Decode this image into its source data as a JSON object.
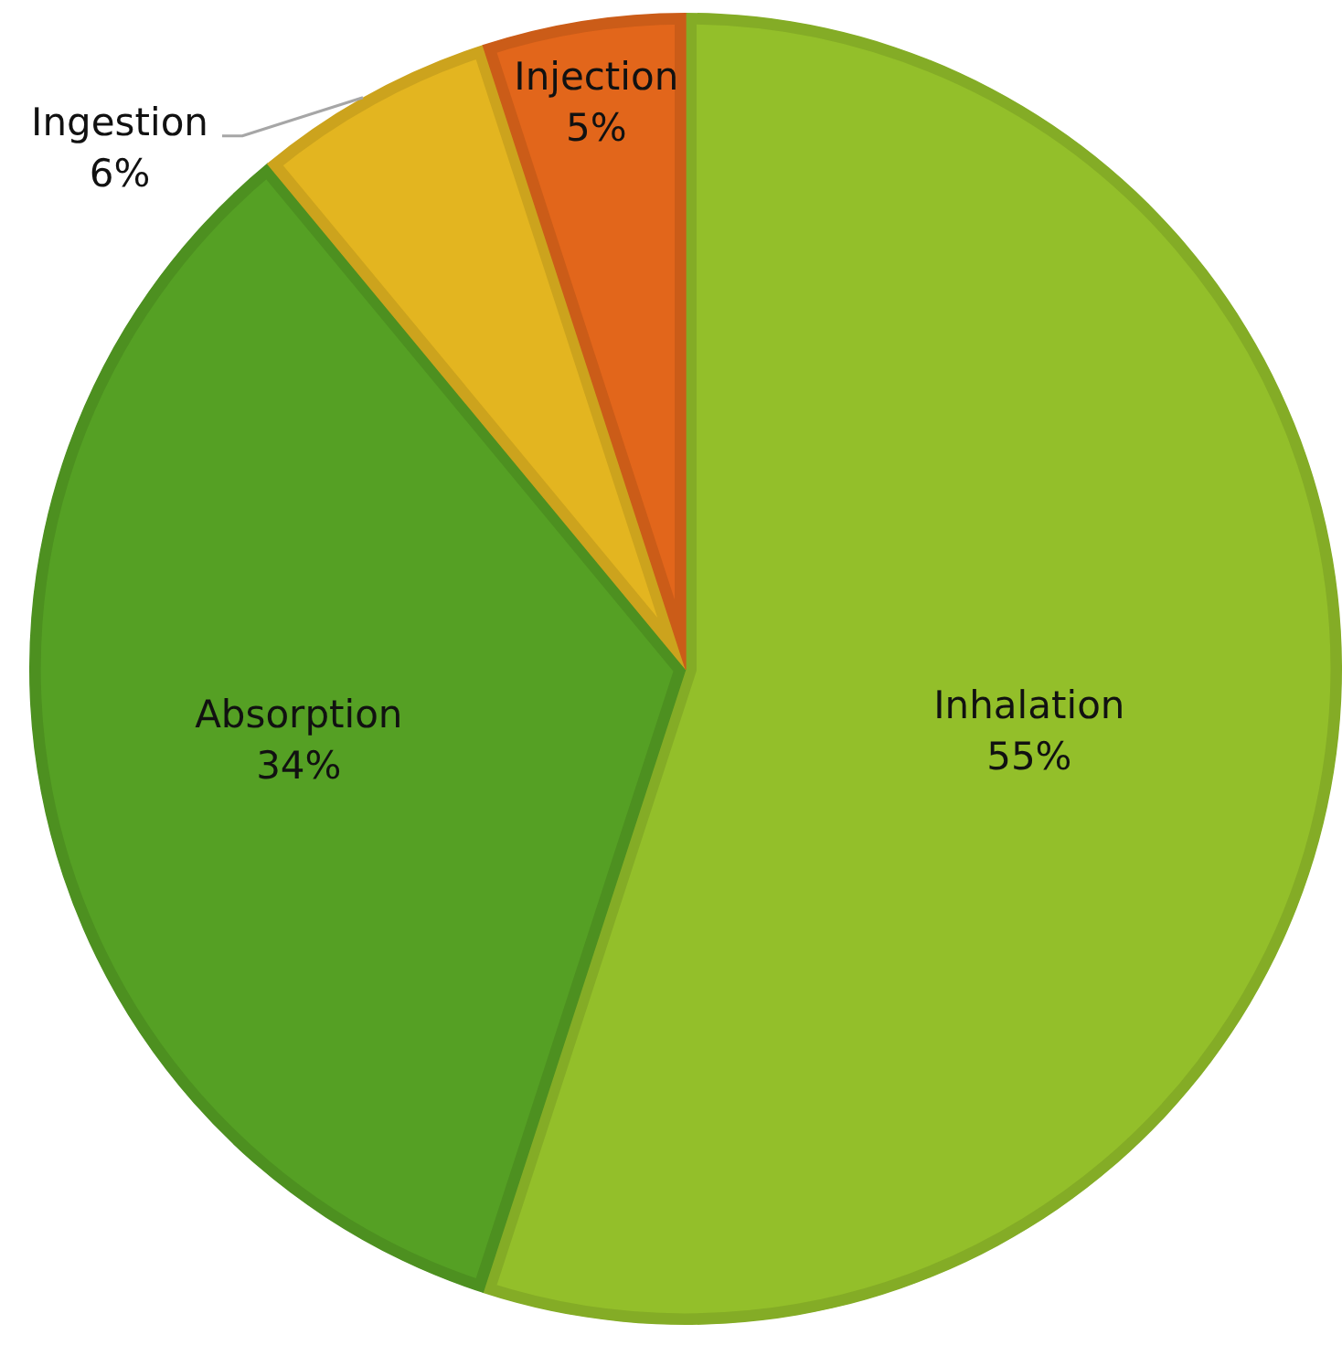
{
  "chart_data": {
    "type": "pie",
    "categories": [
      "Inhalation",
      "Absorption",
      "Ingestion",
      "Injection"
    ],
    "values": [
      55,
      34,
      6,
      5
    ],
    "colors": [
      "#93bf2a",
      "#55a024",
      "#e3b520",
      "#e2661b"
    ],
    "value_labels": [
      "55%",
      "34%",
      "6%",
      "5%"
    ],
    "legend": false
  }
}
